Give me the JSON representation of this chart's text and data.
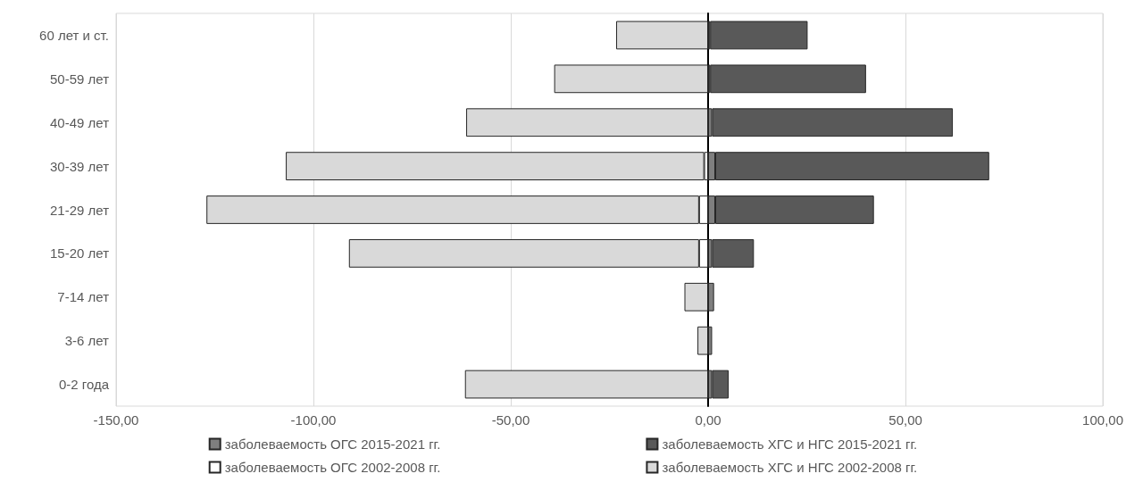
{
  "chart_data": {
    "type": "bar",
    "orientation": "horizontal",
    "stacked": true,
    "categories": [
      "60 лет и ст.",
      "50-59 лет",
      "40-49 лет",
      "30-39 лет",
      "21-29 лет",
      "15-20 лет",
      "7-14 лет",
      "3-6 лет",
      "0-2 года"
    ],
    "series": [
      {
        "name": "заболеваемость ОГС 2015-2021 гг.",
        "color": "#7f7f7f",
        "values": [
          0.5,
          0.5,
          1,
          1.8,
          1.8,
          1,
          1.5,
          1,
          1
        ]
      },
      {
        "name": "заболеваемость ХГС и НГС 2015-2021 гг.",
        "color": "#595959",
        "values": [
          24.7,
          39.5,
          61,
          69.4,
          40.2,
          10.6,
          null,
          null,
          4.2
        ]
      },
      {
        "name": "заболеваемость ОГС 2002-2008 гг.",
        "color": "#ffffff",
        "values": [
          null,
          null,
          null,
          -1,
          -2.3,
          -2.3,
          null,
          null,
          null
        ]
      },
      {
        "name": "заболеваемость ХГС и НГС 2002-2008 гг.",
        "color": "#d9d9d9",
        "values": [
          -23.3,
          -39,
          -61.3,
          -106,
          -124.8,
          -88.7,
          -6,
          -2.7,
          -61.6
        ]
      }
    ],
    "xlim": [
      -150,
      100
    ],
    "xticks": [
      {
        "value": -150,
        "label": "-150,00"
      },
      {
        "value": -100,
        "label": "-100,00"
      },
      {
        "value": -50,
        "label": "-50,00"
      },
      {
        "value": 0,
        "label": "0,00"
      },
      {
        "value": 50,
        "label": "50,00"
      },
      {
        "value": 100,
        "label": "100,00"
      }
    ],
    "grid": "x",
    "legend": "bottom"
  }
}
